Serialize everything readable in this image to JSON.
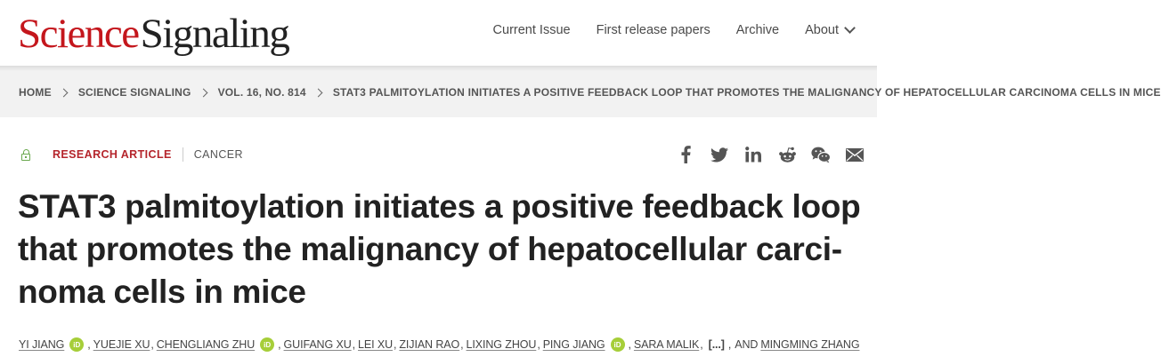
{
  "header": {
    "logo_science": "Science",
    "logo_signaling": "Signaling",
    "nav": [
      {
        "label": "Current Issue"
      },
      {
        "label": "First release papers"
      },
      {
        "label": "Archive"
      },
      {
        "label": "About",
        "icon": "chevron-down-icon"
      }
    ]
  },
  "breadcrumb": [
    "HOME",
    "SCIENCE SIGNALING",
    "VOL. 16, NO. 814",
    "STAT3 PALMITOYLATION INITIATES A POSITIVE FEEDBACK LOOP THAT PROMOTES THE MALIGNANCY OF HEPATOCELLULAR CARCINOMA CELLS IN MICE"
  ],
  "article": {
    "access_icon": "lock-open-icon",
    "type": "RESEARCH ARTICLE",
    "subject": "CANCER",
    "title_lines": [
      "STAT3 palmitoylation initiates a positive feedback loop",
      "that promotes the malignancy of hepatocellular carci-",
      "noma cells in mice"
    ]
  },
  "share_icons": [
    "facebook-icon",
    "twitter-icon",
    "linkedin-icon",
    "reddit-icon",
    "wechat-icon",
    "email-icon"
  ],
  "authors": {
    "list": [
      "YI JIANG",
      "YUEJIE XU",
      "CHENGLIANG ZHU",
      "GUIFANG XU",
      "LEI XU",
      "ZIJIAN RAO",
      "LIXING ZHOU",
      "PING JIANG",
      "SARA MALIK",
      "MINGMING ZHANG"
    ],
    "orcid_label": "iD",
    "ellipsis": "[...]",
    "and_label": "AND"
  },
  "colors": {
    "brand_red": "#c4161c",
    "article_type": "#b5252c",
    "orcid_green": "#a6ce39",
    "access_green": "#6aa84f"
  }
}
